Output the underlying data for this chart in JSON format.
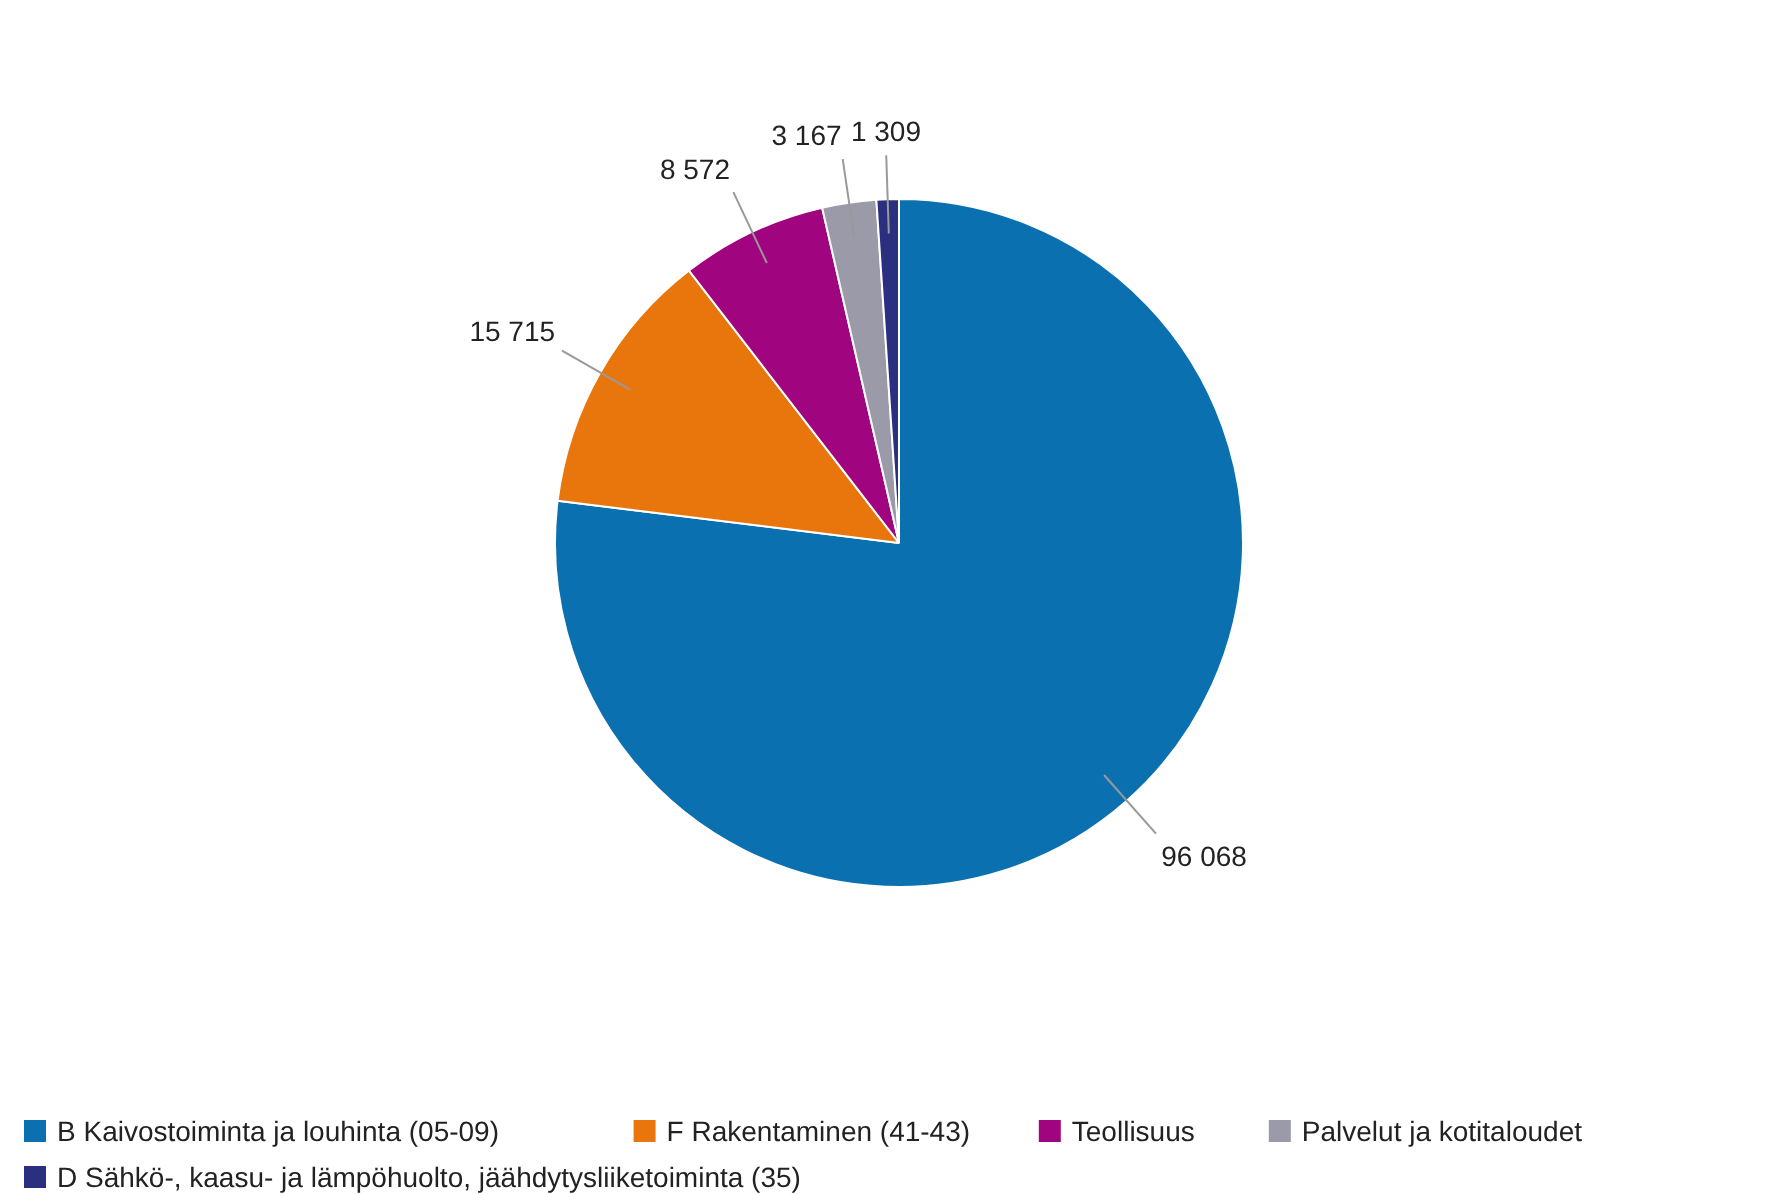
{
  "chart_data": {
    "type": "pie",
    "categories": [
      "B Kaivostoiminta ja louhinta (05-09)",
      "F Rakentaminen (41-43)",
      "Teollisuus",
      "Palvelut ja kotitaloudet",
      "D Sähkö-, kaasu- ja lämpöhuolto, jäähdytysliiketoiminta (35)"
    ],
    "values": [
      96068,
      15715,
      8572,
      3167,
      1309
    ],
    "value_labels": [
      "96 068",
      "15 715",
      "8 572",
      "3 167",
      "1 309"
    ],
    "colors": [
      "#0b70b0",
      "#e9760c",
      "#a0047f",
      "#9a9aa8",
      "#2a2f80"
    ],
    "legend": "bottom"
  }
}
